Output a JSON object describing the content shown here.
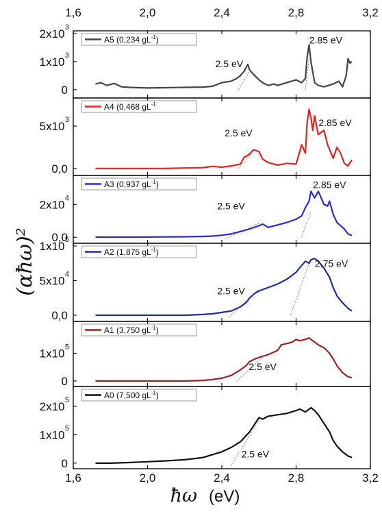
{
  "chart_data": {
    "type": "line",
    "xlabel": "ħω (eV)",
    "xlabel_symbol": "ħω",
    "xlabel_unit": "(eV)",
    "ylabel": "(αħω)²",
    "xlim": [
      1.6,
      3.2
    ],
    "x_ticks": [
      1.6,
      2.0,
      2.4,
      2.8,
      3.2
    ],
    "x_tick_labels": [
      "1,6",
      "2,0",
      "2,4",
      "2,8",
      "3,2"
    ],
    "panels": [
      {
        "series_name": "A5 (0,234 gL⁻¹)",
        "label_base": "A5 (0,234 gL",
        "label_sup": "-1",
        "label_tail": ")",
        "color": "#444444",
        "ylim": [
          -200,
          2000
        ],
        "y_tick_values": [
          0,
          1000,
          2000
        ],
        "y_tick_labels": [
          {
            "base": "0",
            "sup": ""
          },
          {
            "base": "1x10",
            "sup": "3"
          },
          {
            "base": "2x10",
            "sup": "3"
          }
        ],
        "x": [
          1.72,
          1.75,
          1.78,
          1.82,
          1.86,
          1.9,
          2.0,
          2.1,
          2.2,
          2.3,
          2.35,
          2.4,
          2.45,
          2.48,
          2.5,
          2.52,
          2.54,
          2.55,
          2.57,
          2.6,
          2.62,
          2.65,
          2.68,
          2.7,
          2.75,
          2.8,
          2.83,
          2.85,
          2.86,
          2.87,
          2.88,
          2.9,
          2.92,
          2.95,
          3.0,
          3.03,
          3.05,
          3.07,
          3.08,
          3.09,
          3.1
        ],
        "y": [
          200,
          250,
          150,
          220,
          100,
          80,
          60,
          70,
          80,
          90,
          120,
          250,
          300,
          400,
          500,
          650,
          900,
          700,
          550,
          350,
          250,
          150,
          200,
          150,
          250,
          350,
          250,
          400,
          1200,
          1600,
          1000,
          250,
          150,
          100,
          200,
          300,
          100,
          500,
          1100,
          950,
          1000
        ],
        "annotations": [
          {
            "text": "2.5 eV",
            "x": 2.44,
            "y": 800
          },
          {
            "text": "2.85 eV",
            "x": 2.96,
            "y": 1650
          }
        ],
        "tangents": [
          {
            "x1": 2.49,
            "y1": 0,
            "x2": 2.55,
            "y2": 650
          },
          {
            "x1": 2.85,
            "y1": 0,
            "x2": 2.87,
            "y2": 1100
          }
        ]
      },
      {
        "series_name": "A4 (0,468 gL⁻¹)",
        "label_base": "A4 (0,468 gL",
        "label_sup": "-1",
        "label_tail": "",
        "color": "#e8211c",
        "ylim": [
          -500,
          8000
        ],
        "y_tick_values": [
          0,
          5000
        ],
        "y_tick_labels": [
          {
            "base": "0,0",
            "sup": ""
          },
          {
            "base": "5x10",
            "sup": "3"
          }
        ],
        "x": [
          1.72,
          1.8,
          1.9,
          2.0,
          2.1,
          2.2,
          2.3,
          2.35,
          2.4,
          2.45,
          2.5,
          2.52,
          2.55,
          2.57,
          2.6,
          2.62,
          2.65,
          2.7,
          2.75,
          2.8,
          2.82,
          2.83,
          2.85,
          2.86,
          2.87,
          2.88,
          2.89,
          2.9,
          2.92,
          2.95,
          2.97,
          3.0,
          3.02,
          3.04,
          3.06,
          3.08,
          3.1
        ],
        "y": [
          0,
          0,
          0,
          0,
          0,
          50,
          100,
          250,
          150,
          300,
          500,
          1300,
          1700,
          2200,
          2000,
          1100,
          700,
          400,
          600,
          500,
          2000,
          2800,
          1800,
          5500,
          7000,
          6000,
          4500,
          6200,
          4000,
          4500,
          2800,
          1200,
          2500,
          1800,
          600,
          300,
          1000
        ],
        "annotations": [
          {
            "text": "2.5 eV",
            "x": 2.49,
            "y": 3800
          },
          {
            "text": "2.85 eV",
            "x": 3.01,
            "y": 5000
          }
        ],
        "tangents": [
          {
            "x1": 2.49,
            "y1": 0,
            "x2": 2.56,
            "y2": 1800
          }
        ]
      },
      {
        "series_name": "A3 (0,937 gL⁻¹)",
        "label_base": "A3 (0,937 gL",
        "label_sup": "-1",
        "label_tail": ")",
        "color": "#2a2ad8",
        "ylim": [
          -2000,
          36000
        ],
        "y_tick_values": [
          0,
          20000
        ],
        "y_tick_labels": [
          {
            "base": "0,0",
            "sup": ""
          },
          {
            "base": "2x10",
            "sup": "4"
          }
        ],
        "x": [
          1.72,
          1.8,
          1.9,
          2.0,
          2.1,
          2.2,
          2.3,
          2.35,
          2.4,
          2.45,
          2.5,
          2.55,
          2.6,
          2.62,
          2.65,
          2.7,
          2.75,
          2.8,
          2.83,
          2.85,
          2.87,
          2.88,
          2.9,
          2.92,
          2.95,
          2.97,
          2.98,
          3.0,
          3.02,
          3.04,
          3.06,
          3.08,
          3.1
        ],
        "y": [
          100,
          100,
          100,
          150,
          200,
          300,
          500,
          700,
          1200,
          2000,
          3500,
          5000,
          7000,
          8000,
          6000,
          7500,
          9000,
          11000,
          13000,
          18000,
          22000,
          28000,
          24000,
          28000,
          20000,
          19000,
          22000,
          14000,
          9000,
          7000,
          5000,
          2000,
          1000
        ],
        "annotations": [
          {
            "text": "2.5 eV",
            "x": 2.45,
            "y": 17000
          },
          {
            "text": "2.85 eV",
            "x": 2.98,
            "y": 30000
          }
        ],
        "tangents": [
          {
            "x1": 2.42,
            "y1": -1000,
            "x2": 2.61,
            "y2": 9000
          },
          {
            "x1": 2.83,
            "y1": 0,
            "x2": 2.88,
            "y2": 16000
          }
        ]
      },
      {
        "series_name": "A2 (1,875 gL⁻¹)",
        "label_base": "A2 (1,875 gL",
        "label_sup": "-1",
        "label_tail": ")",
        "color": "#1f2e9a",
        "ylim": [
          -5000,
          100000
        ],
        "y_tick_values": [
          0,
          50000,
          100000
        ],
        "y_tick_labels": [
          {
            "base": "0,0",
            "sup": ""
          },
          {
            "base": "5x10",
            "sup": "4"
          },
          {
            "base": "1x10",
            "sup": "5"
          }
        ],
        "x": [
          1.72,
          1.8,
          1.9,
          2.0,
          2.1,
          2.2,
          2.3,
          2.35,
          2.4,
          2.45,
          2.5,
          2.53,
          2.55,
          2.58,
          2.6,
          2.65,
          2.7,
          2.75,
          2.8,
          2.83,
          2.85,
          2.87,
          2.88,
          2.9,
          2.92,
          2.95,
          2.98,
          3.0,
          3.02,
          3.05,
          3.08,
          3.1
        ],
        "y": [
          0,
          0,
          0,
          0,
          0,
          0,
          1000,
          2000,
          4000,
          6000,
          12000,
          18000,
          25000,
          32000,
          35000,
          40000,
          45000,
          52000,
          62000,
          72000,
          78000,
          75000,
          80000,
          82000,
          78000,
          68000,
          55000,
          40000,
          28000,
          18000,
          10000,
          6000
        ],
        "annotations": [
          {
            "text": "2.5 eV",
            "x": 2.45,
            "y": 30000
          },
          {
            "text": "2.75 eV",
            "x": 2.99,
            "y": 70000
          }
        ],
        "tangents": [
          {
            "x1": 2.44,
            "y1": -3000,
            "x2": 2.6,
            "y2": 38000
          },
          {
            "x1": 2.77,
            "y1": 0,
            "x2": 2.88,
            "y2": 82000
          }
        ]
      },
      {
        "series_name": "A1 (3,750 gL⁻¹)",
        "label_base": "A1 (3,750 gL",
        "label_sup": "-1",
        "label_tail": ")",
        "color": "#9e2121",
        "ylim": [
          -10000,
          205000
        ],
        "y_tick_values": [
          0,
          100000
        ],
        "y_tick_labels": [
          {
            "base": "0",
            "sup": ""
          },
          {
            "base": "1x10",
            "sup": "5"
          }
        ],
        "x": [
          1.72,
          1.8,
          1.9,
          2.0,
          2.1,
          2.2,
          2.3,
          2.35,
          2.4,
          2.45,
          2.5,
          2.53,
          2.55,
          2.58,
          2.6,
          2.65,
          2.7,
          2.72,
          2.75,
          2.78,
          2.8,
          2.82,
          2.85,
          2.87,
          2.9,
          2.92,
          2.95,
          2.98,
          3.0,
          3.02,
          3.05,
          3.08,
          3.1
        ],
        "y": [
          0,
          0,
          0,
          0,
          0,
          0,
          2000,
          5000,
          10000,
          20000,
          40000,
          55000,
          70000,
          80000,
          85000,
          95000,
          110000,
          130000,
          135000,
          140000,
          150000,
          145000,
          150000,
          155000,
          140000,
          130000,
          120000,
          100000,
          80000,
          55000,
          30000,
          15000,
          12000
        ],
        "annotations": [
          {
            "text": "2.5 eV",
            "x": 2.62,
            "y": 40000
          }
        ],
        "tangents": [
          {
            "x1": 2.48,
            "y1": 0,
            "x2": 2.62,
            "y2": 85000
          }
        ]
      },
      {
        "series_name": "A0 (7,500 gL⁻¹)",
        "label_base": "A0 (7,500 gL",
        "label_sup": "-1",
        "label_tail": ")",
        "color": "#111111",
        "ylim": [
          -10000,
          260000
        ],
        "y_tick_values": [
          0,
          100000,
          200000
        ],
        "y_tick_labels": [
          {
            "base": "0",
            "sup": ""
          },
          {
            "base": "1x10",
            "sup": "5"
          },
          {
            "base": "2x10",
            "sup": "5"
          }
        ],
        "x": [
          1.72,
          1.8,
          1.9,
          2.0,
          2.1,
          2.2,
          2.3,
          2.35,
          2.4,
          2.45,
          2.5,
          2.55,
          2.58,
          2.6,
          2.62,
          2.65,
          2.7,
          2.75,
          2.8,
          2.82,
          2.85,
          2.88,
          2.9,
          2.92,
          2.95,
          2.98,
          3.0,
          3.02,
          3.05,
          3.08,
          3.1
        ],
        "y": [
          0,
          0,
          2000,
          5000,
          8000,
          12000,
          20000,
          30000,
          40000,
          55000,
          75000,
          110000,
          140000,
          160000,
          155000,
          165000,
          170000,
          175000,
          185000,
          190000,
          180000,
          195000,
          185000,
          170000,
          140000,
          110000,
          80000,
          60000,
          40000,
          25000,
          20000
        ],
        "annotations": [
          {
            "text": "2.5 eV",
            "x": 2.58,
            "y": 20000
          }
        ],
        "tangents": [
          {
            "x1": 2.45,
            "y1": -10000,
            "x2": 2.6,
            "y2": 150000
          }
        ]
      }
    ]
  }
}
